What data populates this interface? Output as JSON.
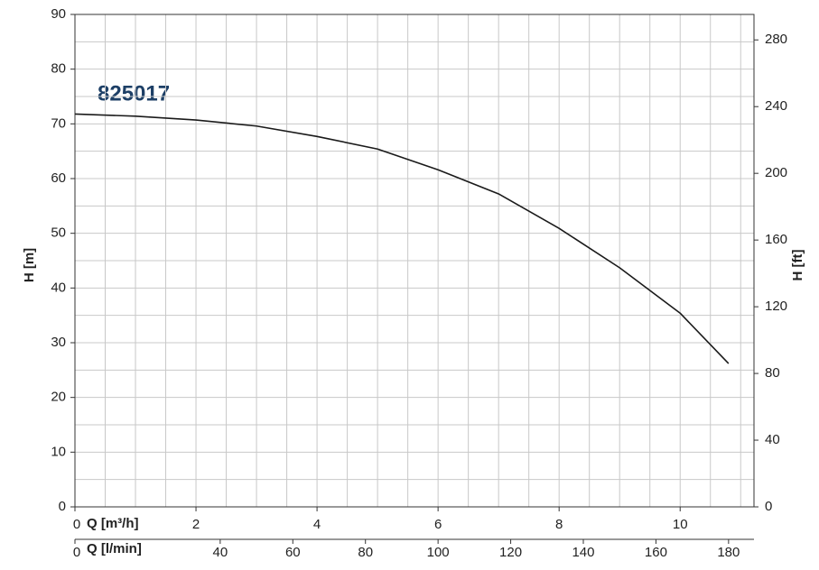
{
  "chart_data": {
    "type": "line",
    "title": "825017",
    "y_label": "H [m]",
    "y2_label": "H [ft]",
    "x_label": "Q [m³/h]",
    "x2_label": "Q [l/min]",
    "xlim": [
      0,
      11.22
    ],
    "xticks": [
      0,
      2,
      4,
      6,
      8,
      10
    ],
    "x2lim": [
      0,
      187
    ],
    "x2ticks": [
      0,
      40,
      60,
      80,
      100,
      120,
      140,
      160,
      180
    ],
    "ylim": [
      0,
      90
    ],
    "yticks": [
      0,
      10,
      20,
      30,
      40,
      50,
      60,
      70,
      80,
      90
    ],
    "y2lim": [
      0,
      295.28
    ],
    "y2ticks": [
      0,
      40,
      80,
      120,
      160,
      200,
      240,
      280
    ],
    "xgrid": [
      0.5,
      1,
      1.5,
      2,
      2.5,
      3,
      3.5,
      4,
      4.5,
      5,
      5.5,
      6,
      6.5,
      7,
      7.5,
      8,
      8.5,
      9,
      9.5,
      10,
      10.5,
      11
    ],
    "ygrid": [
      5,
      10,
      15,
      20,
      25,
      30,
      35,
      40,
      45,
      50,
      55,
      60,
      65,
      70,
      75,
      80,
      85
    ],
    "grid": true,
    "series": [
      {
        "name": "825017",
        "color": "#1a1a1a",
        "x": [
          0,
          1,
          2,
          3,
          4,
          5,
          6,
          7,
          8,
          9,
          10,
          10.8
        ],
        "values": [
          71.8,
          71.4,
          70.7,
          69.6,
          67.7,
          65.4,
          61.6,
          57.2,
          50.9,
          43.7,
          35.4,
          26.2
        ]
      }
    ]
  }
}
